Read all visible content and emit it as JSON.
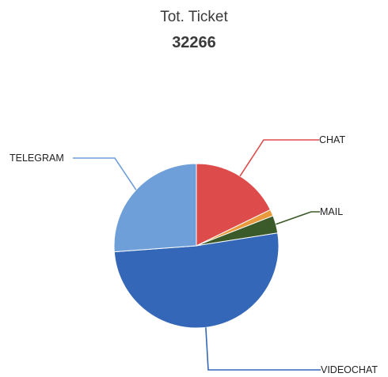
{
  "chart_data": {
    "type": "pie",
    "title": "Tot. Ticket",
    "subtitle": "32266",
    "slices": [
      {
        "label": "CHAT",
        "value": 18.0,
        "color": "#dd4b4b"
      },
      {
        "label": "MAIL",
        "value": 3.5,
        "color": "#3b5a2a"
      },
      {
        "label": "VIDEOCHAT",
        "value": 52.0,
        "color": "#3467b7"
      },
      {
        "label": "TELEGRAM",
        "value": 26.5,
        "color": "#6e9fd9"
      }
    ],
    "extra_wedges": [
      {
        "value": 1.3,
        "color": "#e89a3c"
      }
    ],
    "legend": "none"
  }
}
